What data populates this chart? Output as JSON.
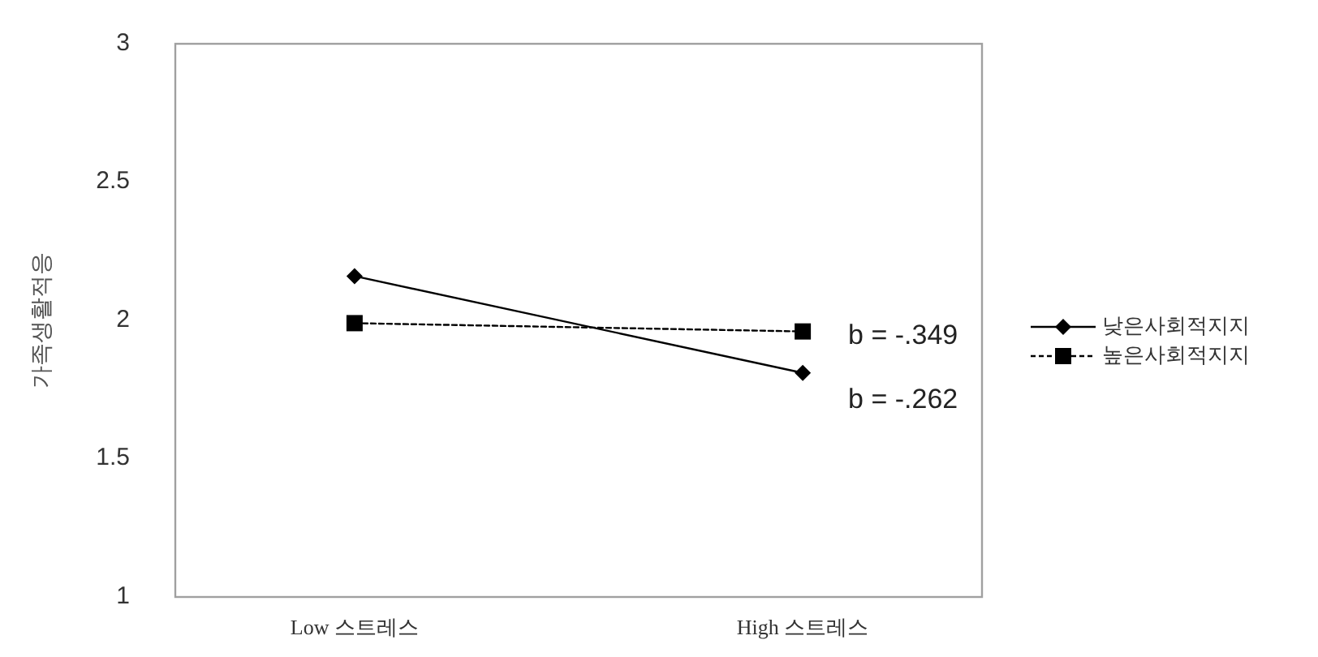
{
  "chart_data": {
    "type": "line",
    "ylabel": "가족생활적응",
    "categories": [
      "Low 스트레스",
      "High 스트레스"
    ],
    "series": [
      {
        "name": "낮은사회적지지",
        "color": "#000000",
        "values": [
          2.16,
          1.81
        ],
        "marker": "diamond",
        "line_style": "solid"
      },
      {
        "name": "높은사회적지지",
        "color": "#000000",
        "values": [
          1.99,
          1.96
        ],
        "marker": "square",
        "line_style": "dashed"
      }
    ],
    "ylim": [
      1,
      3
    ],
    "yticks": [
      1,
      1.5,
      2,
      2.5,
      3
    ],
    "grid": false,
    "legend": "right",
    "annotations": [
      "b = -.349",
      "b = -.262"
    ]
  }
}
